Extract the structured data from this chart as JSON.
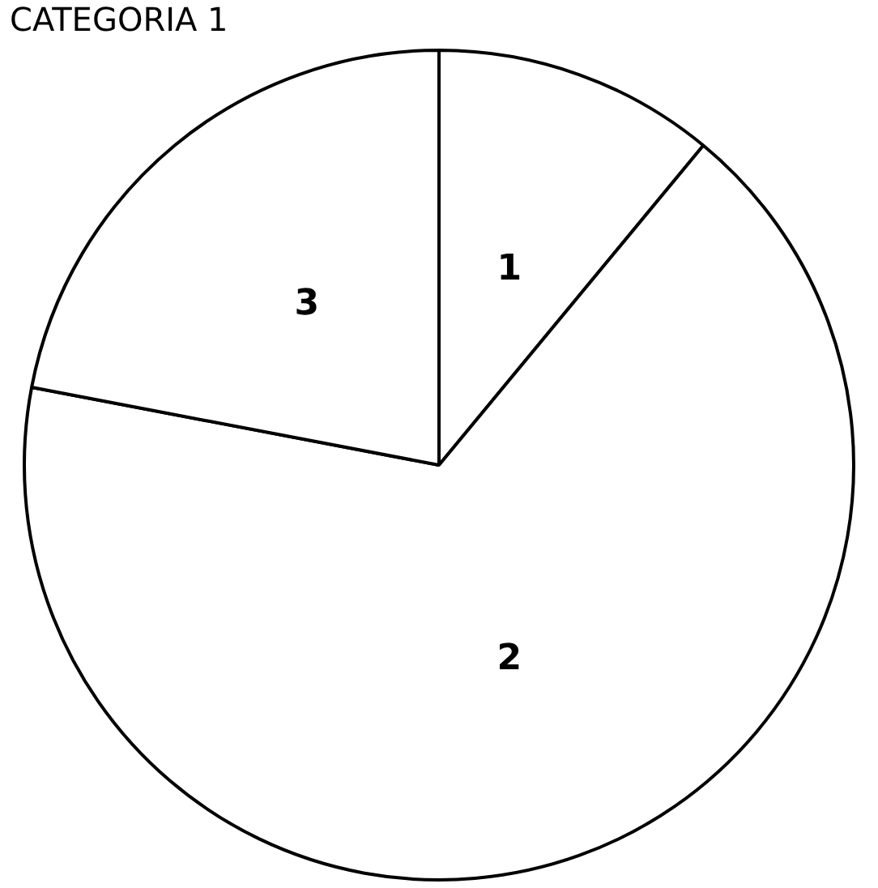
{
  "chart_data": {
    "type": "pie",
    "title": "CATEGORIA 1",
    "categories": [
      "1",
      "2",
      "3"
    ],
    "values": [
      11,
      67,
      22
    ],
    "colors": [
      "#ffffff",
      "#ffffff",
      "#ffffff"
    ],
    "legend": false
  }
}
